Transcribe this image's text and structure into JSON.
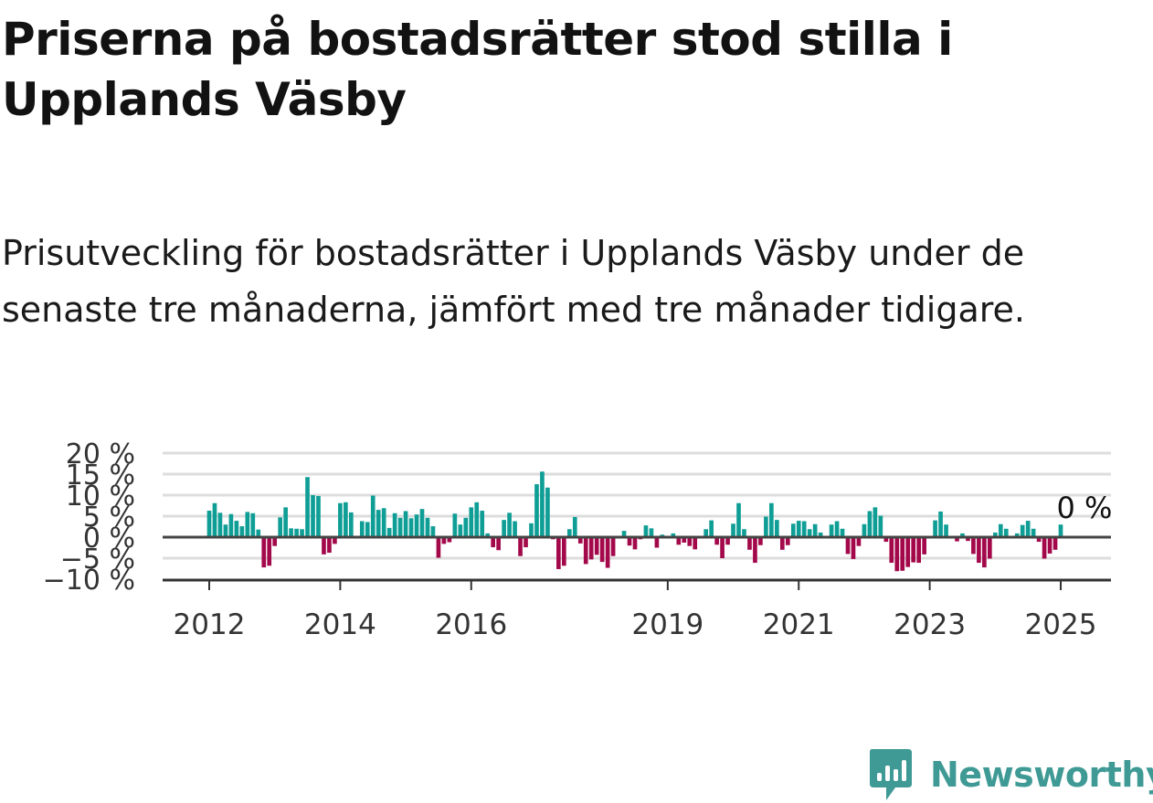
{
  "title": "Priserna på bostadsrätter stod stilla i Upplands Väsby",
  "subtitle": "Prisutveckling för bostadsrätter i Upplands Väsby under de senaste tre månaderna, jämfört med tre månader tidigare.",
  "logo": {
    "text": "Newsworthy",
    "icon": "newsworthy-bar-chart-icon",
    "color": "#3f9a95"
  },
  "colors": {
    "positive": "#0f9e96",
    "negative": "#a3084a",
    "grid": "#dddddd",
    "zero": "#444444",
    "axis": "#333333"
  },
  "chart_data": {
    "type": "bar",
    "title": "",
    "xlabel": "",
    "ylabel": "",
    "ylim": [
      -10,
      20
    ],
    "y_ticks": [
      20,
      15,
      10,
      5,
      0,
      -5,
      -10
    ],
    "y_tick_labels": [
      "20 %",
      "15 %",
      "10 %",
      "5 %",
      "0 %",
      "−5 %",
      "−10 %"
    ],
    "x_ticks": [
      "2012",
      "2014",
      "2016",
      "2019",
      "2021",
      "2023",
      "2025"
    ],
    "x_range": [
      "2011-09",
      "2025-12"
    ],
    "grid": true,
    "annotation": {
      "text": "0 %",
      "x": "2025-04",
      "y": 0
    },
    "series": [
      {
        "start": "2012-01",
        "frequency": "monthly",
        "values": [
          6.3,
          8.1,
          5.8,
          3.0,
          5.5,
          3.9,
          2.6,
          6.0,
          5.7,
          1.8,
          -7.2,
          -6.8,
          -2.1,
          4.7,
          7.1,
          2.1,
          2.0,
          1.9,
          14.3,
          10.0,
          9.8,
          -4.1,
          -3.7,
          -1.6,
          8.1,
          8.3,
          5.9,
          0.2,
          3.8,
          3.6,
          9.9,
          6.5,
          6.9,
          2.2,
          5.7,
          4.6,
          6.2,
          4.5,
          5.4,
          6.7,
          4.6,
          2.6,
          -4.9,
          -1.6,
          -1.2,
          5.6,
          3.0,
          4.6,
          7.1,
          8.3,
          6.3,
          0.9,
          -2.4,
          -3.1,
          4.1,
          5.8,
          3.8,
          -4.5,
          -2.4,
          3.3,
          12.6,
          15.6,
          11.8,
          -0.5,
          -7.6,
          -6.8,
          1.9,
          4.8,
          -1.5,
          -6.4,
          -5.3,
          -4.2,
          -5.9,
          -7.3,
          -4.5,
          0.1,
          1.5,
          -2.0,
          -2.9,
          -0.5,
          2.8,
          2.1,
          -2.5,
          0.6,
          0.1,
          0.9,
          -1.8,
          -1.3,
          -2.1,
          -2.9,
          0.3,
          1.9,
          4.0,
          -1.8,
          -5.0,
          -1.8,
          3.2,
          8.1,
          1.9,
          -3.0,
          -6.1,
          -1.9,
          4.9,
          8.1,
          4.1,
          -3.0,
          -1.9,
          3.2,
          3.9,
          3.8,
          1.9,
          3.1,
          1.1,
          0.2,
          3.0,
          3.8,
          2.0,
          -4.0,
          -5.2,
          -2.1,
          3.1,
          6.2,
          7.1,
          5.1,
          -1.1,
          -6.1,
          -8.1,
          -8.0,
          -7.1,
          -6.0,
          -6.1,
          -4.1,
          0.1,
          4.0,
          6.1,
          3.0,
          0.1,
          -1.0,
          0.9,
          -0.9,
          -4.0,
          -6.1,
          -7.2,
          -5.1,
          1.1,
          3.1,
          2.0,
          0.1,
          0.9,
          2.9,
          3.9,
          2.0,
          -1.1,
          -5.1,
          -3.9,
          -3.0,
          3.0
        ]
      }
    ]
  }
}
